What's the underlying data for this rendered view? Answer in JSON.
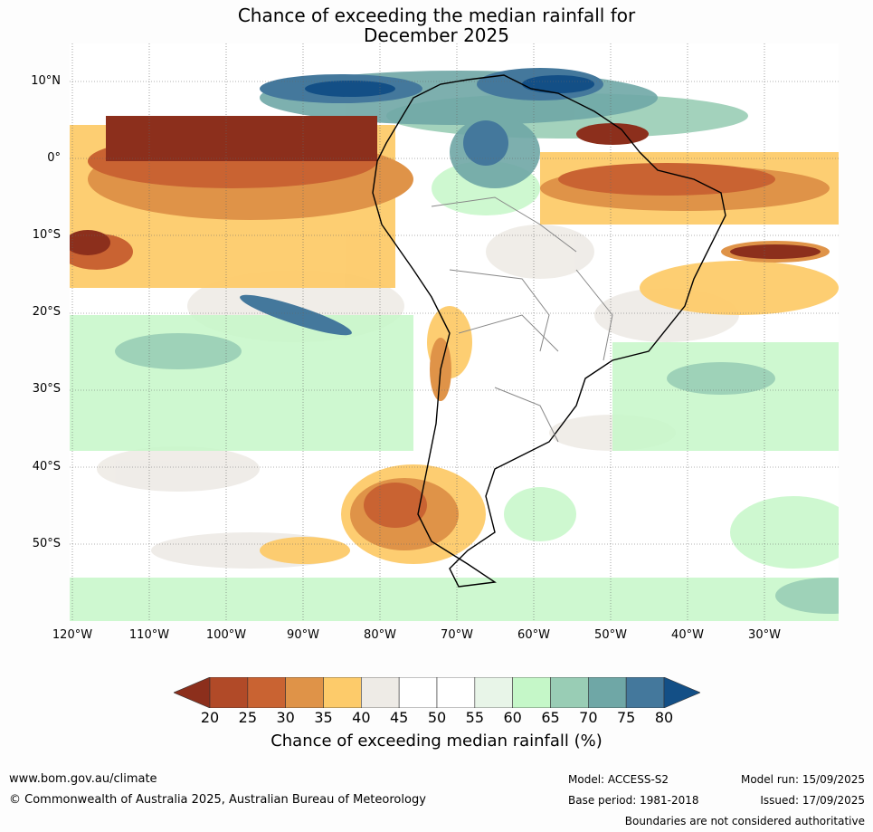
{
  "title_line1": "Chance of exceeding the median rainfall for",
  "title_line2": "December 2025",
  "lat_labels": [
    "10°N",
    "0°",
    "10°S",
    "20°S",
    "30°S",
    "40°S",
    "50°S"
  ],
  "lon_labels": [
    "120°W",
    "110°W",
    "100°W",
    "90°W",
    "80°W",
    "70°W",
    "60°W",
    "50°W",
    "40°W",
    "30°W"
  ],
  "colorbar": {
    "label": "Chance of exceeding median rainfall (%)",
    "ticks": [
      "20",
      "25",
      "30",
      "35",
      "40",
      "45",
      "50",
      "55",
      "60",
      "65",
      "70",
      "75",
      "80"
    ],
    "colors": [
      "#8c2f1c",
      "#b14a28",
      "#c96332",
      "#df9348",
      "#fdcb6a",
      "#eeebe6",
      "#ffffff",
      "#ffffff",
      "#e8f5e8",
      "#c5f7c8",
      "#99cdb5",
      "#6fa7a6",
      "#44789c",
      "#134f86"
    ]
  },
  "footer": {
    "url": "www.bom.gov.au/climate",
    "copyright": "© Commonwealth of Australia 2025, Australian Bureau of Meteorology",
    "model": "Model: ACCESS-S2",
    "base_period": "Base period: 1981-2018",
    "model_run": "Model run: 15/09/2025",
    "issued": "Issued: 17/09/2025",
    "boundaries": "Boundaries are not considered authoritative"
  }
}
